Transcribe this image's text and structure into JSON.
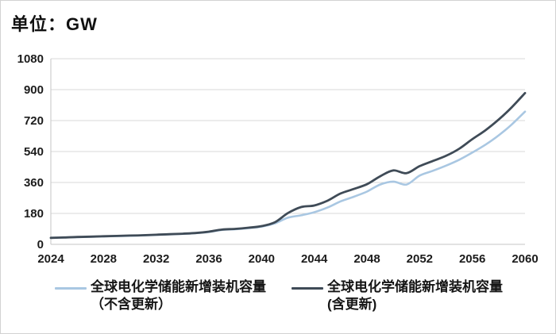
{
  "title": "单位：GW",
  "chart_data": {
    "type": "line",
    "title": "单位：GW",
    "x": [
      2024,
      2025,
      2026,
      2027,
      2028,
      2029,
      2030,
      2031,
      2032,
      2033,
      2034,
      2035,
      2036,
      2037,
      2038,
      2039,
      2040,
      2041,
      2042,
      2043,
      2044,
      2045,
      2046,
      2047,
      2048,
      2049,
      2050,
      2051,
      2052,
      2053,
      2054,
      2055,
      2056,
      2057,
      2058,
      2059,
      2060
    ],
    "series": [
      {
        "key": "excluding-renewal",
        "name": "全球电化学储能新增装机容量（不含更新）",
        "color": "#a9c7e2",
        "stroke_width": 2.6,
        "values": [
          38,
          40,
          42,
          44,
          46,
          48,
          50,
          52,
          55,
          58,
          61,
          65,
          72,
          84,
          88,
          94,
          103,
          122,
          155,
          169,
          187,
          214,
          250,
          277,
          307,
          348,
          365,
          348,
          400,
          428,
          458,
          492,
          534,
          580,
          634,
          698,
          772
        ]
      },
      {
        "key": "including-renewal",
        "name": "全球电化学储能新增装机容量(含更新)",
        "color": "#3f4b57",
        "stroke_width": 2.8,
        "values": [
          38,
          40,
          43,
          45,
          47,
          49,
          51,
          53,
          56,
          59,
          62,
          66,
          74,
          86,
          90,
          97,
          106,
          128,
          182,
          217,
          226,
          254,
          296,
          322,
          350,
          396,
          430,
          414,
          455,
          485,
          515,
          556,
          612,
          664,
          726,
          798,
          880
        ]
      }
    ],
    "ylim": [
      0,
      1080
    ],
    "yticks": [
      0,
      180,
      360,
      540,
      720,
      900,
      1080
    ],
    "xticks": [
      2024,
      2028,
      2032,
      2036,
      2040,
      2044,
      2048,
      2052,
      2056,
      2060
    ],
    "xlabel": "",
    "ylabel": "",
    "grid": "horizontal",
    "legend_position": "bottom"
  },
  "legend": {
    "entries": [
      {
        "line1": "全球电化学储能新增装机容量",
        "line2": "（不含更新）"
      },
      {
        "line1": "全球电化学储能新增装机容量",
        "line2": "(含更新)"
      }
    ]
  },
  "colors": {
    "series_light": "#a9c7e2",
    "series_dark": "#3f4b57",
    "gridline": "#d9d9d9",
    "axis_line": "#c6c6c6",
    "tick_text": "#1c1c1c",
    "frame_border": "#d2d2d2",
    "background": "#ffffff"
  }
}
